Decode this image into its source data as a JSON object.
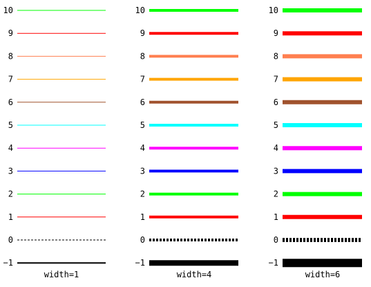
{
  "panels": [
    {
      "caption": "width=1",
      "width": 1
    },
    {
      "caption": "width=4",
      "width": 4
    },
    {
      "caption": "width=6",
      "width": 6
    }
  ],
  "lines": [
    {
      "label": "10",
      "color": "#00ff00",
      "style": "solid"
    },
    {
      "label": "9",
      "color": "#ff0000",
      "style": "solid"
    },
    {
      "label": "8",
      "color": "#ff7f50",
      "style": "solid"
    },
    {
      "label": "7",
      "color": "#ffa500",
      "style": "solid"
    },
    {
      "label": "6",
      "color": "#a0522d",
      "style": "solid"
    },
    {
      "label": "5",
      "color": "#00ffff",
      "style": "solid"
    },
    {
      "label": "4",
      "color": "#ff00ff",
      "style": "solid"
    },
    {
      "label": "3",
      "color": "#0000ff",
      "style": "solid"
    },
    {
      "label": "2",
      "color": "#00ff00",
      "style": "solid"
    },
    {
      "label": "1",
      "color": "#ff0000",
      "style": "solid"
    },
    {
      "label": "0",
      "color": "#000000",
      "style": "dashed"
    },
    {
      "label": "−1",
      "color": "#000000",
      "style": "solid"
    }
  ]
}
